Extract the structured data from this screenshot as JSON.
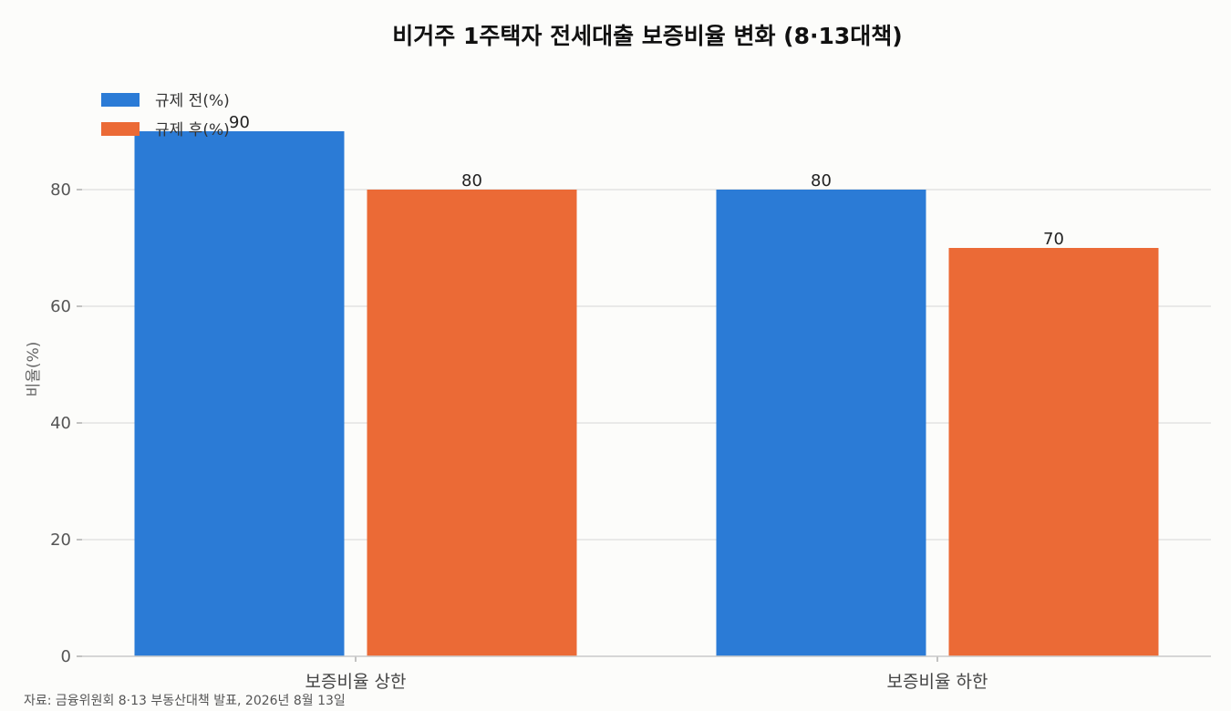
{
  "chart_data": {
    "type": "bar",
    "title": "비거주 1주택자 전세대출 보증비율 변화 (8·13대책)",
    "ylabel": "비율(%)",
    "xlabel": "",
    "categories": [
      "보증비율 상한",
      "보증비율 하한"
    ],
    "series": [
      {
        "name": "규제 전(%)",
        "values": [
          90,
          80
        ],
        "color": "#2b7bd6"
      },
      {
        "name": "규제 후(%)",
        "values": [
          80,
          70
        ],
        "color": "#eb6a36"
      }
    ],
    "ylim": [
      0,
      95
    ],
    "yticks": [
      0,
      20,
      40,
      60,
      80
    ],
    "grid": true,
    "legend_position": "top-left",
    "source": "자료: 금융위원회 8·13 부동산대책 발표, 2026년 8월 13일"
  }
}
